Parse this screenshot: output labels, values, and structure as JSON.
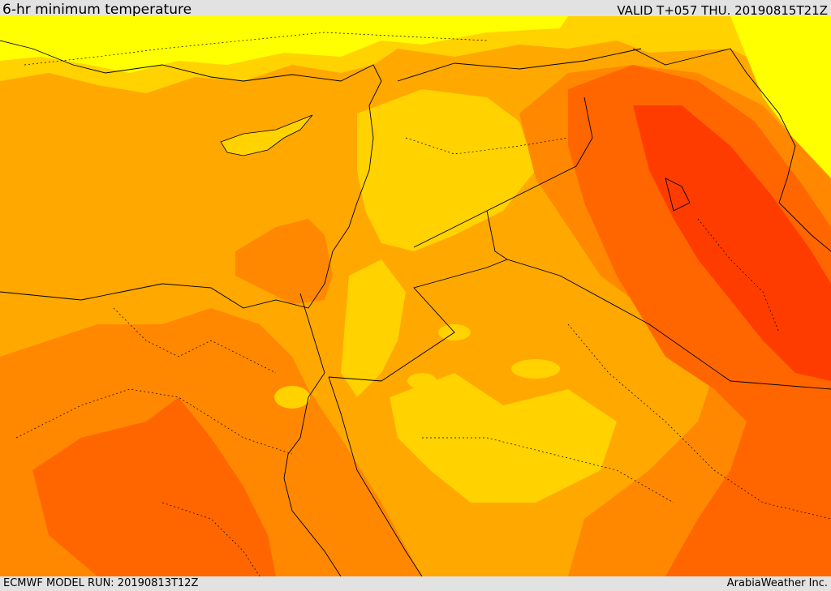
{
  "header": {
    "title": "6-hr minimum temperature",
    "valid": "VALID T+057 THU. 20190815T21Z"
  },
  "footer": {
    "model_run": "ECMWF MODEL RUN: 20190813T12Z",
    "credit": "ArabiaWeather Inc."
  },
  "palette": {
    "yellow": "#ffff00",
    "light_orange": "#ffd200",
    "orange": "#ffa800",
    "dark_orange": "#ff8800",
    "red_orange": "#ff6600",
    "red": "#ff3c00",
    "boundaries": "#000000"
  }
}
